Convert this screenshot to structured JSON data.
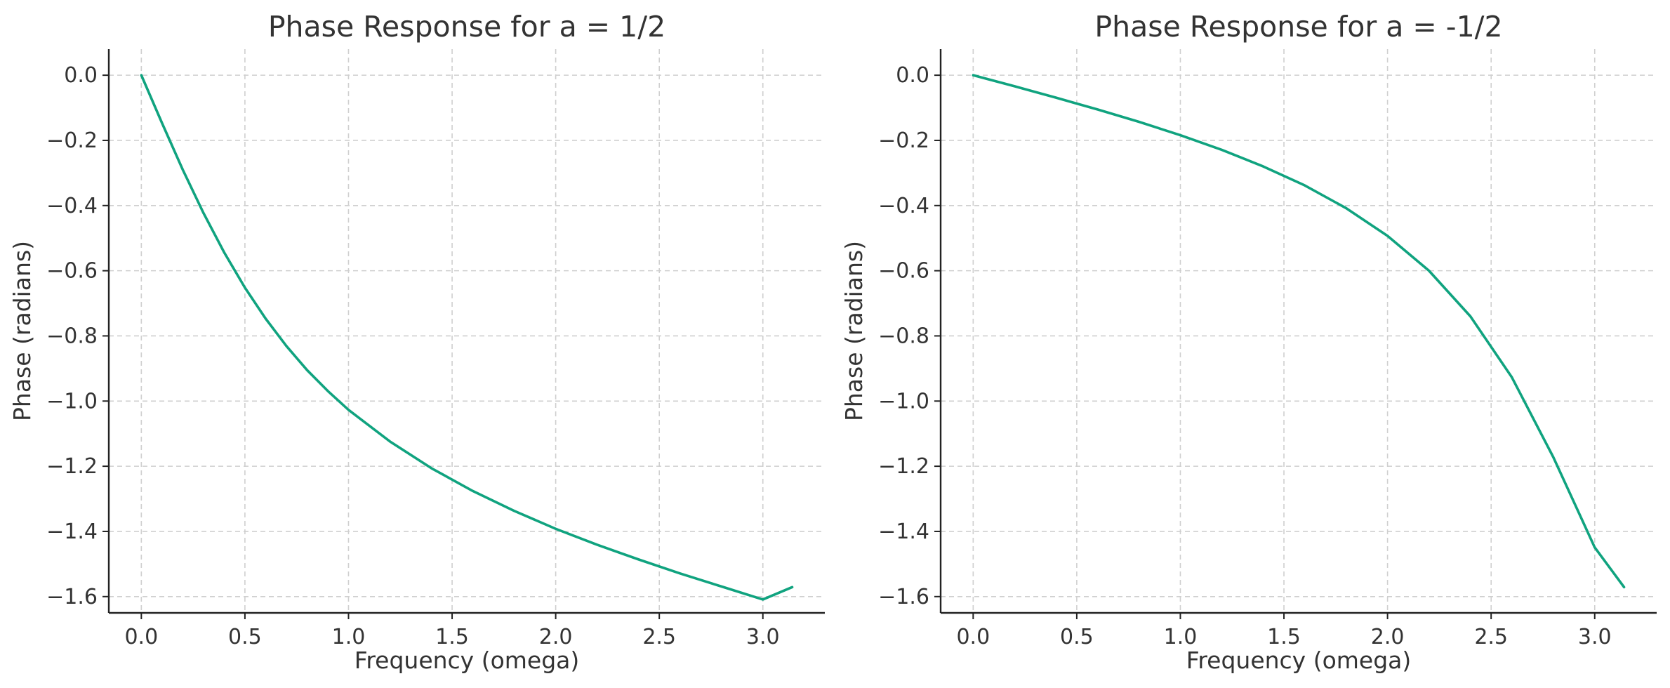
{
  "colors": {
    "series": "#10a37f",
    "grid": "#cfcfcf",
    "axis": "#222222",
    "text": "#333333"
  },
  "chart_data": [
    {
      "type": "line",
      "title": "Phase Response for a = 1/2",
      "xlabel": "Frequency (omega)",
      "ylabel": "Phase (radians)",
      "xlim": [
        -0.157,
        3.299
      ],
      "ylim": [
        -1.65,
        0.08
      ],
      "xticks": [
        0.0,
        0.5,
        1.0,
        1.5,
        2.0,
        2.5,
        3.0
      ],
      "yticks": [
        0.0,
        -0.2,
        -0.4,
        -0.6,
        -0.8,
        -1.0,
        -1.2,
        -1.4,
        -1.6
      ],
      "xtick_labels": [
        "0.0",
        "0.5",
        "1.0",
        "1.5",
        "2.0",
        "2.5",
        "3.0"
      ],
      "ytick_labels": [
        "0.0",
        "−0.2",
        "−0.4",
        "−0.6",
        "−0.8",
        "−1.0",
        "−1.2",
        "−1.4",
        "−1.6"
      ],
      "grid": true,
      "series": [
        {
          "x": [
            0.0,
            0.1,
            0.2,
            0.3,
            0.4,
            0.5,
            0.6,
            0.7,
            0.8,
            0.9,
            1.0,
            1.2,
            1.4,
            1.6,
            1.8,
            2.0,
            2.2,
            2.4,
            2.6,
            2.8,
            3.0,
            3.1416
          ],
          "y": [
            0.0,
            -0.147,
            -0.29,
            -0.423,
            -0.544,
            -0.652,
            -0.747,
            -0.831,
            -0.905,
            -0.969,
            -1.027,
            -1.124,
            -1.206,
            -1.276,
            -1.337,
            -1.392,
            -1.441,
            -1.486,
            -1.529,
            -1.569,
            -1.609,
            -1.571
          ]
        }
      ]
    },
    {
      "type": "line",
      "title": "Phase Response for a = -1/2",
      "xlabel": "Frequency (omega)",
      "ylabel": "Phase (radians)",
      "xlim": [
        -0.157,
        3.299
      ],
      "ylim": [
        -1.65,
        0.08
      ],
      "xticks": [
        0.0,
        0.5,
        1.0,
        1.5,
        2.0,
        2.5,
        3.0
      ],
      "yticks": [
        0.0,
        -0.2,
        -0.4,
        -0.6,
        -0.8,
        -1.0,
        -1.2,
        -1.4,
        -1.6
      ],
      "xtick_labels": [
        "0.0",
        "0.5",
        "1.0",
        "1.5",
        "2.0",
        "2.5",
        "3.0"
      ],
      "ytick_labels": [
        "0.0",
        "−0.2",
        "−0.4",
        "−0.6",
        "−0.8",
        "−1.0",
        "−1.2",
        "−1.4",
        "−1.6"
      ],
      "grid": true,
      "series": [
        {
          "x": [
            0.0,
            0.2,
            0.4,
            0.6,
            0.8,
            1.0,
            1.2,
            1.4,
            1.6,
            1.8,
            2.0,
            2.2,
            2.4,
            2.6,
            2.8,
            3.0,
            3.1416
          ],
          "y": [
            0.0,
            -0.034,
            -0.069,
            -0.105,
            -0.143,
            -0.184,
            -0.229,
            -0.28,
            -0.338,
            -0.408,
            -0.493,
            -0.6,
            -0.74,
            -0.927,
            -1.172,
            -1.449,
            -1.571
          ]
        }
      ]
    }
  ]
}
